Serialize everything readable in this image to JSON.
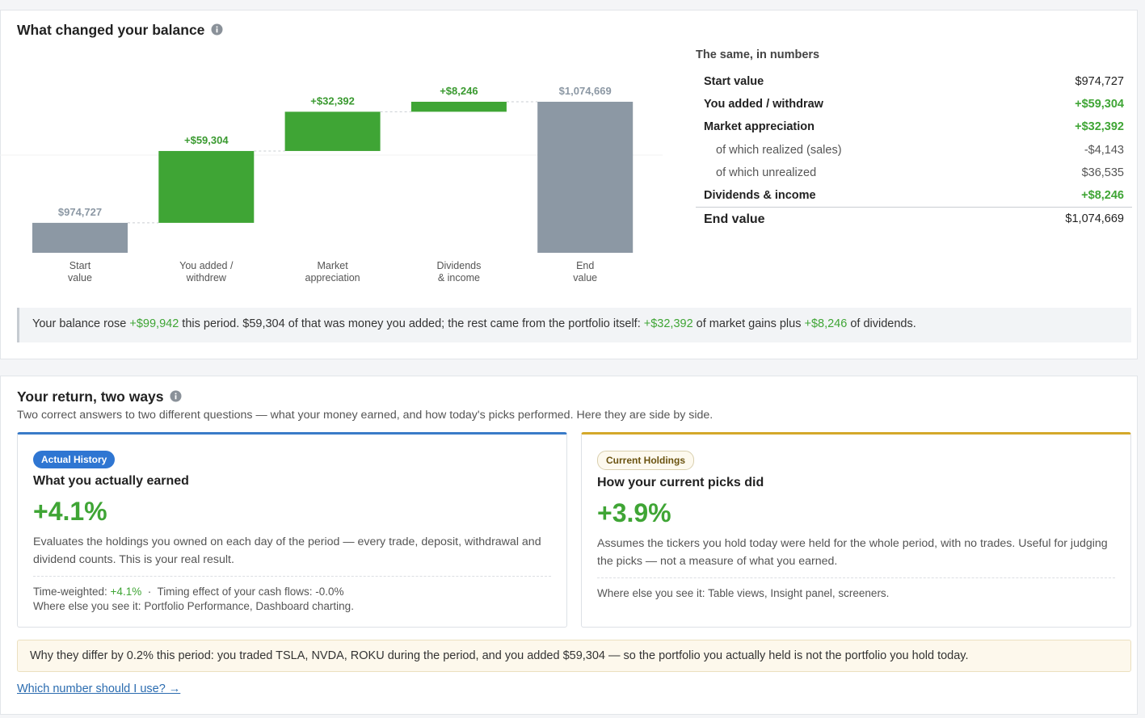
{
  "balance": {
    "title": "What changed your balance",
    "chart": {
      "type": "waterfall",
      "categories": [
        [
          "Start",
          "value"
        ],
        [
          "You added /",
          "withdrew"
        ],
        [
          "Market",
          "appreciation"
        ],
        [
          "Dividends",
          "& income"
        ],
        [
          "End",
          "value"
        ]
      ],
      "values": [
        974727,
        59304,
        32392,
        8246,
        1074669
      ],
      "value_labels": [
        "$974,727",
        "+$59,304",
        "+$32,392",
        "+$8,246",
        "$1,074,669"
      ],
      "totals": [
        true,
        false,
        false,
        false,
        true
      ],
      "total_color": "#8c98a4",
      "increase_color": "#3fa535",
      "ylim": [
        950000,
        1080000
      ]
    },
    "table": {
      "title": "The same, in numbers",
      "rows": [
        {
          "label": "Start value",
          "value": "$974,727",
          "bold": true
        },
        {
          "label": "You added / withdraw",
          "value": "+$59,304",
          "bold": true,
          "color": "#3fa535"
        },
        {
          "label": "Market appreciation",
          "value": "+$32,392",
          "bold": true,
          "color": "#3fa535"
        },
        {
          "label": "of which realized (sales)",
          "value": "-$4,143",
          "indent": true
        },
        {
          "label": "of which unrealized",
          "value": "$36,535",
          "indent": true
        },
        {
          "label": "Dividends & income",
          "value": "+$8,246",
          "bold": true,
          "color": "#3fa535"
        }
      ],
      "total": {
        "label": "End value",
        "value": "$1,074,669"
      }
    },
    "summary": [
      "Your balance rose ",
      {
        "text": "+$99,942",
        "color": "#3fa535"
      },
      " this period. $59,304 of that was money you added; the rest came from the portfolio itself: ",
      {
        "text": "+$32,392",
        "color": "#3fa535"
      },
      " of market gains plus ",
      {
        "text": "+$8,246",
        "color": "#3fa535"
      },
      " of dividends."
    ]
  },
  "returns": {
    "title": "Your return, two ways",
    "subtitle": "Two correct answers to two different questions — what your money earned, and how today's picks performed. Here they are side by side.",
    "cards": [
      {
        "badge": "Actual History",
        "heading": "What you actually earned",
        "value": "+4.1%",
        "description": "Evaluates the holdings you owned on each day of the period — every trade, deposit, withdrawal and dividend counts. This is your real result.",
        "footer": [
          [
            "Time-weighted: ",
            {
              "text": "+4.1%",
              "color": "#3fa535"
            },
            "  ·  Timing effect of your cash flows: -0.0%"
          ],
          [
            "Where else you see it: Portfolio Performance, Dashboard charting."
          ]
        ]
      },
      {
        "badge": "Current Holdings",
        "heading": "How your current picks did",
        "value": "+3.9%",
        "description": "Assumes the tickers you hold today were held for the whole period, with no trades. Useful for judging the picks — not a measure of what you earned.",
        "footer": [
          [
            "Where else you see it: Table views, Insight panel, screeners."
          ]
        ]
      }
    ],
    "note": "Why they differ by 0.2% this period: you traded TSLA, NVDA, ROKU during the period, and you added $59,304 — so the portfolio you actually held is not the portfolio you hold today.",
    "link": "Which number should I use? →"
  }
}
